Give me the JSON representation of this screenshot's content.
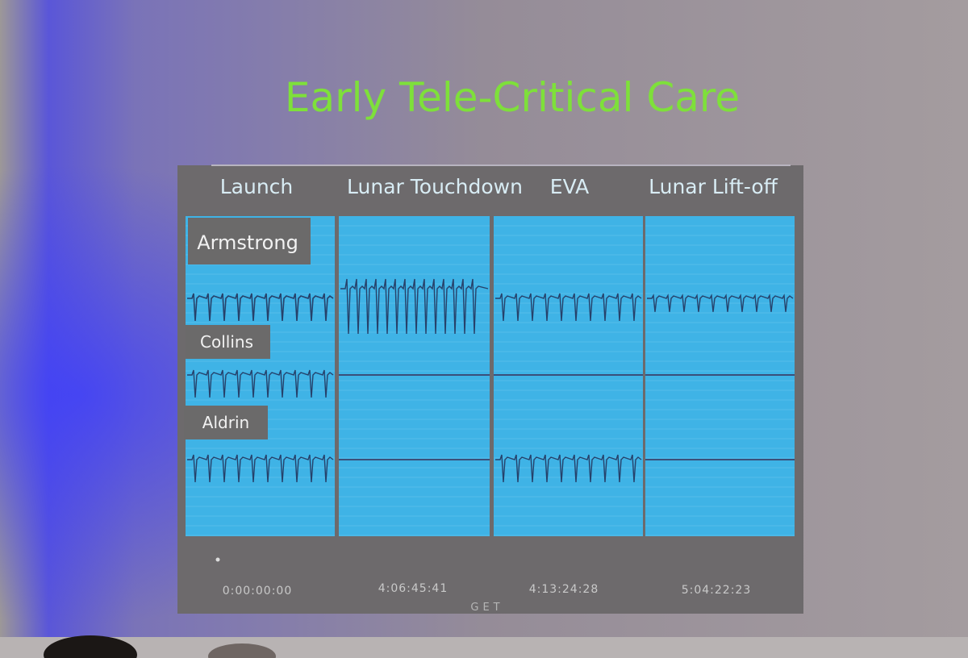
{
  "title": "Early Tele-Critical Care",
  "columns": [
    "Launch",
    "Lunar Touchdown",
    "EVA",
    "Lunar Lift-off"
  ],
  "crew": [
    "Armstrong",
    "Collins",
    "Aldrin"
  ],
  "timestamps": [
    "0:00:00:00",
    "4:06:45:41",
    "4:13:24:28",
    "5:04:22:23"
  ],
  "time_axis_label": "GET"
}
